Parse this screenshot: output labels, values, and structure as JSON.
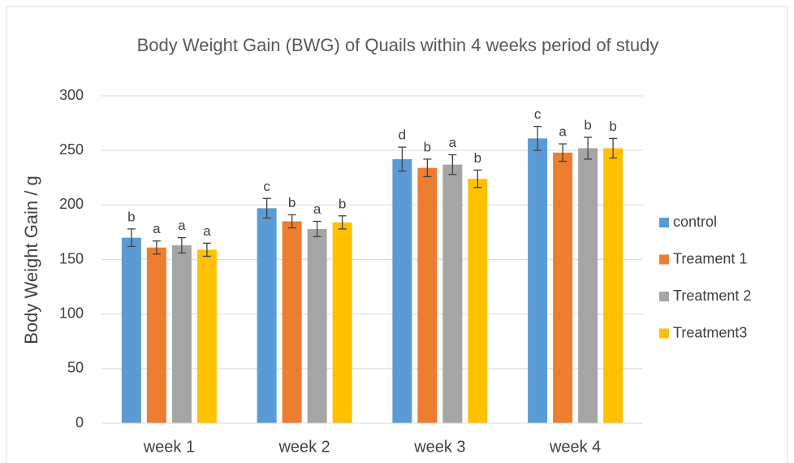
{
  "chart_data": {
    "type": "bar",
    "title": "Body Weight Gain (BWG) of Quails within 4 weeks period of study",
    "y_label": "Body Weight Gain / g",
    "categories": [
      "week 1",
      "week 2",
      "week 3",
      "week 4"
    ],
    "series": [
      {
        "name": "control",
        "color": "#5b9bd5",
        "values": [
          170,
          197,
          242,
          261
        ],
        "errors": [
          8,
          9,
          11,
          11
        ],
        "annotations": [
          "b",
          "c",
          "d",
          "c"
        ]
      },
      {
        "name": "Treament 1",
        "color": "#ed7d31",
        "values": [
          161,
          185,
          234,
          248
        ],
        "errors": [
          6,
          6,
          8,
          8
        ],
        "annotations": [
          "a",
          "b",
          "b",
          "a"
        ]
      },
      {
        "name": "Treatment 2",
        "color": "#a5a5a5",
        "values": [
          163,
          178,
          237,
          252
        ],
        "errors": [
          7,
          7,
          9,
          10
        ],
        "annotations": [
          "a",
          "a",
          "a",
          "b"
        ]
      },
      {
        "name": "Treatment3",
        "color": "#ffc000",
        "values": [
          159,
          184,
          224,
          252
        ],
        "errors": [
          6,
          6,
          8,
          9
        ],
        "annotations": [
          "a",
          "b",
          "b",
          "b"
        ]
      }
    ],
    "ylim": [
      0,
      300
    ],
    "yticks": [
      0,
      50,
      100,
      150,
      200,
      250,
      300
    ],
    "grid": true,
    "legend": "right"
  }
}
